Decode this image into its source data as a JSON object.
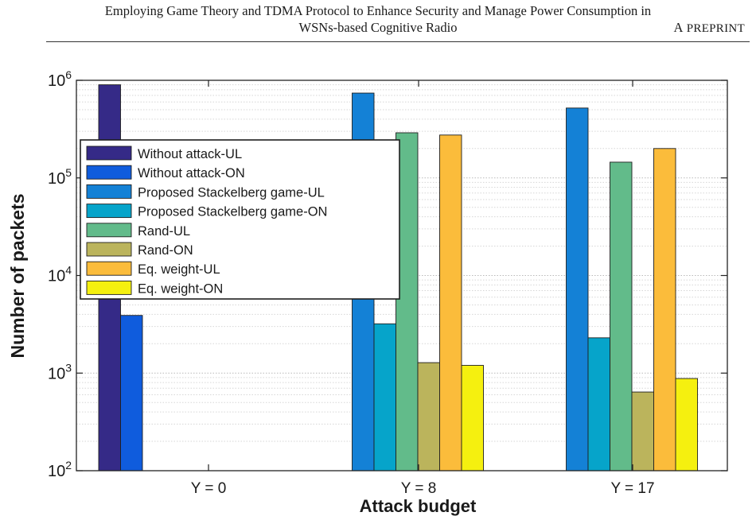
{
  "header": {
    "title_line1": "Employing Game Theory and TDMA Protocol to Enhance Security and Manage Power Consumption in",
    "title_line2": "WSNs-based Cognitive Radio",
    "tag_initial": "A",
    "tag_rest": "PREPRINT"
  },
  "chart_data": {
    "type": "bar",
    "xlabel": "Attack budget",
    "ylabel": "Number of packets",
    "categories": [
      "Y = 0",
      "Y = 8",
      "Y = 17"
    ],
    "y_scale": "log",
    "ylim": [
      100,
      1000000
    ],
    "y_ticks": [
      {
        "value": 100,
        "base": "10",
        "exp": "2"
      },
      {
        "value": 1000,
        "base": "10",
        "exp": "3"
      },
      {
        "value": 10000,
        "base": "10",
        "exp": "4"
      },
      {
        "value": 100000,
        "base": "10",
        "exp": "5"
      },
      {
        "value": 1000000,
        "base": "10",
        "exp": "6"
      }
    ],
    "grid": true,
    "legend_position": "top-left",
    "series": [
      {
        "name": "Without attack-UL",
        "color": "#352a87",
        "values": [
          900000,
          null,
          null
        ]
      },
      {
        "name": "Without attack-ON",
        "color": "#0f5cdd",
        "values": [
          3900,
          null,
          null
        ]
      },
      {
        "name": "Proposed Stackelberg game-UL",
        "color": "#1481d6",
        "values": [
          null,
          740000,
          520000
        ]
      },
      {
        "name": "Proposed Stackelberg game-ON",
        "color": "#06a4ca",
        "values": [
          null,
          3200,
          2300
        ]
      },
      {
        "name": "Rand-UL",
        "color": "#62bb8a",
        "values": [
          null,
          290000,
          145000
        ]
      },
      {
        "name": "Rand-ON",
        "color": "#bbb45c",
        "values": [
          null,
          1280,
          640
        ]
      },
      {
        "name": "Eq. weight-UL",
        "color": "#fbbc3b",
        "values": [
          null,
          275000,
          200000
        ]
      },
      {
        "name": "Eq. weight-ON",
        "color": "#f5f00f",
        "values": [
          null,
          1200,
          880
        ]
      }
    ]
  }
}
